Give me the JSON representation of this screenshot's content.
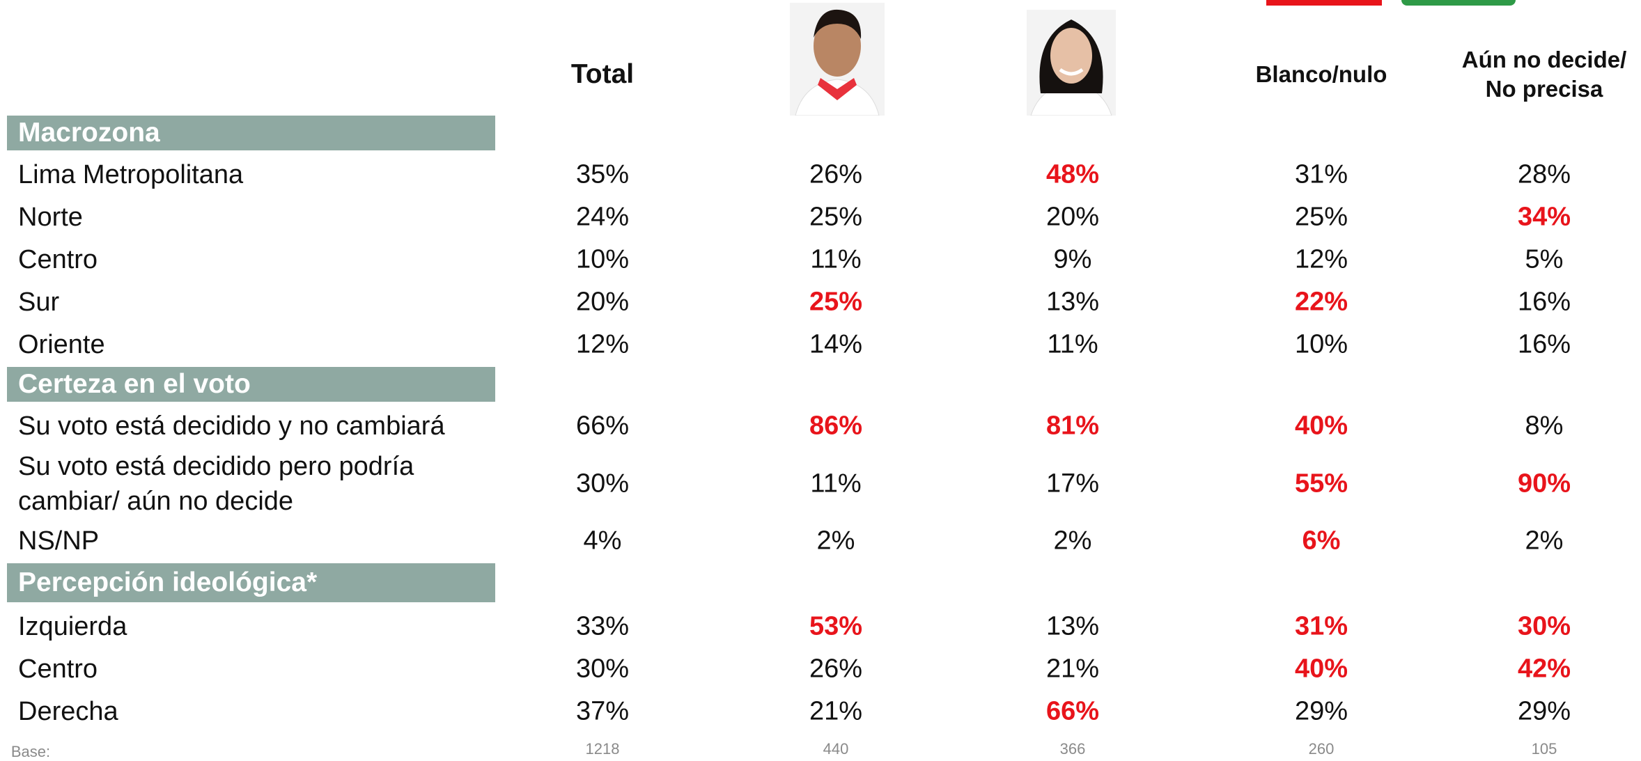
{
  "table": {
    "columns": [
      "Total",
      null,
      null,
      "Blanco/nulo",
      "Aún no decide/ No precisa"
    ],
    "sections": [
      {
        "title": "Macrozona",
        "rows": [
          {
            "label": "Lima Metropolitana",
            "values": [
              "35%",
              "26%",
              "48%",
              "31%",
              "28%"
            ],
            "highlight": [
              2
            ]
          },
          {
            "label": "Norte",
            "values": [
              "24%",
              "25%",
              "20%",
              "25%",
              "34%"
            ],
            "highlight": [
              4
            ]
          },
          {
            "label": "Centro",
            "values": [
              "10%",
              "11%",
              "9%",
              "12%",
              "5%"
            ],
            "highlight": []
          },
          {
            "label": "Sur",
            "values": [
              "20%",
              "25%",
              "13%",
              "22%",
              "16%"
            ],
            "highlight": [
              1,
              3
            ]
          },
          {
            "label": "Oriente",
            "values": [
              "12%",
              "14%",
              "11%",
              "10%",
              "16%"
            ],
            "highlight": []
          }
        ]
      },
      {
        "title": "Certeza en el voto",
        "rows": [
          {
            "label": "Su voto está decidido y no cambiará",
            "values": [
              "66%",
              "86%",
              "81%",
              "40%",
              "8%"
            ],
            "highlight": [
              1,
              2,
              3
            ]
          },
          {
            "label": "Su voto está decidido pero podría cambiar/ aún no decide",
            "values": [
              "30%",
              "11%",
              "17%",
              "55%",
              "90%"
            ],
            "highlight": [
              3,
              4
            ]
          },
          {
            "label": "NS/NP",
            "values": [
              "4%",
              "2%",
              "2%",
              "6%",
              "2%"
            ],
            "highlight": [
              3
            ]
          }
        ]
      },
      {
        "title": "Percepción ideológica*",
        "rows": [
          {
            "label": "Izquierda",
            "values": [
              "33%",
              "53%",
              "13%",
              "31%",
              "30%"
            ],
            "highlight": [
              1,
              3,
              4
            ]
          },
          {
            "label": "Centro",
            "values": [
              "30%",
              "26%",
              "21%",
              "40%",
              "42%"
            ],
            "highlight": [
              3,
              4
            ]
          },
          {
            "label": "Derecha",
            "values": [
              "37%",
              "21%",
              "66%",
              "29%",
              "29%"
            ],
            "highlight": [
              2
            ]
          }
        ]
      }
    ],
    "base": {
      "label": "Base:",
      "values": [
        "1218",
        "440",
        "366",
        "260",
        "105"
      ]
    }
  }
}
